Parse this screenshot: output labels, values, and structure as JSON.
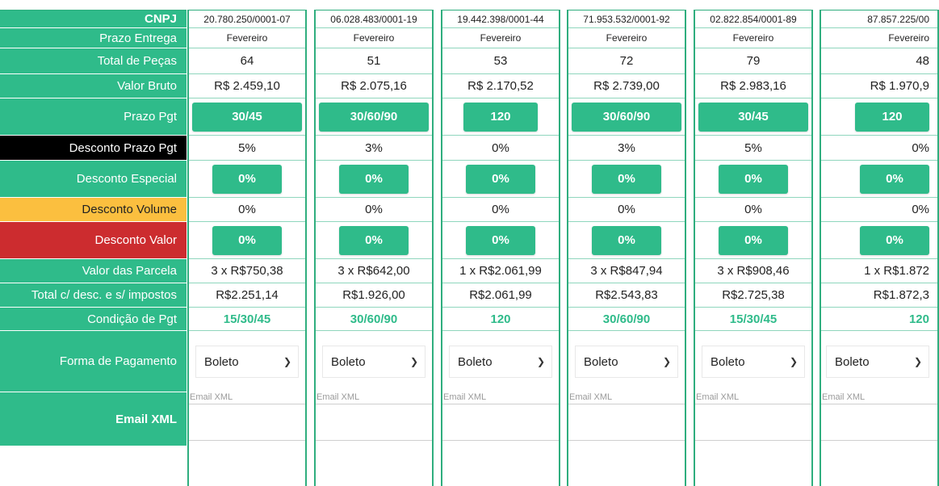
{
  "labels": {
    "cnpj": "CNPJ",
    "prazo_entrega": "Prazo Entrega",
    "total_pecas": "Total de Peças",
    "valor_bruto": "Valor Bruto",
    "prazo_pgt": "Prazo Pgt",
    "desconto_prazo_pgt": "Desconto Prazo Pgt",
    "desconto_especial": "Desconto Especial",
    "desconto_volume": "Desconto Volume",
    "desconto_valor": "Desconto Valor",
    "valor_parcela": "Valor das Parcela",
    "total_desc": "Total c/ desc. e s/ impostos",
    "condicao_pgt": "Condição de Pgt",
    "forma_pagamento": "Forma de Pagamento",
    "email_xml": "Email XML"
  },
  "colors": {
    "green": "#2fbb8a",
    "black": "#000000",
    "yellow": "#fbbf3f",
    "red": "#cc2c2f"
  },
  "suppliers": [
    {
      "cnpj": "20.780.250/0001-07",
      "prazo_entrega": "Fevereiro",
      "total_pecas": "64",
      "valor_bruto": "R$ 2.459,10",
      "prazo_pgt": "30/45",
      "desconto_prazo_pgt": "5%",
      "desconto_especial": "0%",
      "desconto_volume": "0%",
      "desconto_valor": "0%",
      "valor_parcela": "3 x R$750,38",
      "total_desc": "R$2.251,14",
      "condicao_pgt": "15/30/45",
      "forma_pagamento": "Boleto",
      "email_placeholder": "Email XML"
    },
    {
      "cnpj": "06.028.483/0001-19",
      "prazo_entrega": "Fevereiro",
      "total_pecas": "51",
      "valor_bruto": "R$ 2.075,16",
      "prazo_pgt": "30/60/90",
      "desconto_prazo_pgt": "3%",
      "desconto_especial": "0%",
      "desconto_volume": "0%",
      "desconto_valor": "0%",
      "valor_parcela": "3 x R$642,00",
      "total_desc": "R$1.926,00",
      "condicao_pgt": "30/60/90",
      "forma_pagamento": "Boleto",
      "email_placeholder": "Email XML"
    },
    {
      "cnpj": "19.442.398/0001-44",
      "prazo_entrega": "Fevereiro",
      "total_pecas": "53",
      "valor_bruto": "R$ 2.170,52",
      "prazo_pgt": "120",
      "desconto_prazo_pgt": "0%",
      "desconto_especial": "0%",
      "desconto_volume": "0%",
      "desconto_valor": "0%",
      "valor_parcela": "1 x R$2.061,99",
      "total_desc": "R$2.061,99",
      "condicao_pgt": "120",
      "forma_pagamento": "Boleto",
      "email_placeholder": "Email XML"
    },
    {
      "cnpj": "71.953.532/0001-92",
      "prazo_entrega": "Fevereiro",
      "total_pecas": "72",
      "valor_bruto": "R$ 2.739,00",
      "prazo_pgt": "30/60/90",
      "desconto_prazo_pgt": "3%",
      "desconto_especial": "0%",
      "desconto_volume": "0%",
      "desconto_valor": "0%",
      "valor_parcela": "3 x R$847,94",
      "total_desc": "R$2.543,83",
      "condicao_pgt": "30/60/90",
      "forma_pagamento": "Boleto",
      "email_placeholder": "Email XML"
    },
    {
      "cnpj": "02.822.854/0001-89",
      "prazo_entrega": "Fevereiro",
      "total_pecas": "79",
      "valor_bruto": "R$ 2.983,16",
      "prazo_pgt": "30/45",
      "desconto_prazo_pgt": "5%",
      "desconto_especial": "0%",
      "desconto_volume": "0%",
      "desconto_valor": "0%",
      "valor_parcela": "3 x R$908,46",
      "total_desc": "R$2.725,38",
      "condicao_pgt": "15/30/45",
      "forma_pagamento": "Boleto",
      "email_placeholder": "Email XML"
    },
    {
      "cnpj": "87.857.225/00",
      "prazo_entrega": "Fevereiro",
      "total_pecas": "48",
      "valor_bruto": "R$ 1.970,9",
      "prazo_pgt": "120",
      "desconto_prazo_pgt": "0%",
      "desconto_especial": "0%",
      "desconto_volume": "0%",
      "desconto_valor": "0%",
      "valor_parcela": "1 x R$1.872",
      "total_desc": "R$1.872,3",
      "condicao_pgt": "120",
      "forma_pagamento": "Boleto",
      "email_placeholder": "Email XML"
    }
  ]
}
